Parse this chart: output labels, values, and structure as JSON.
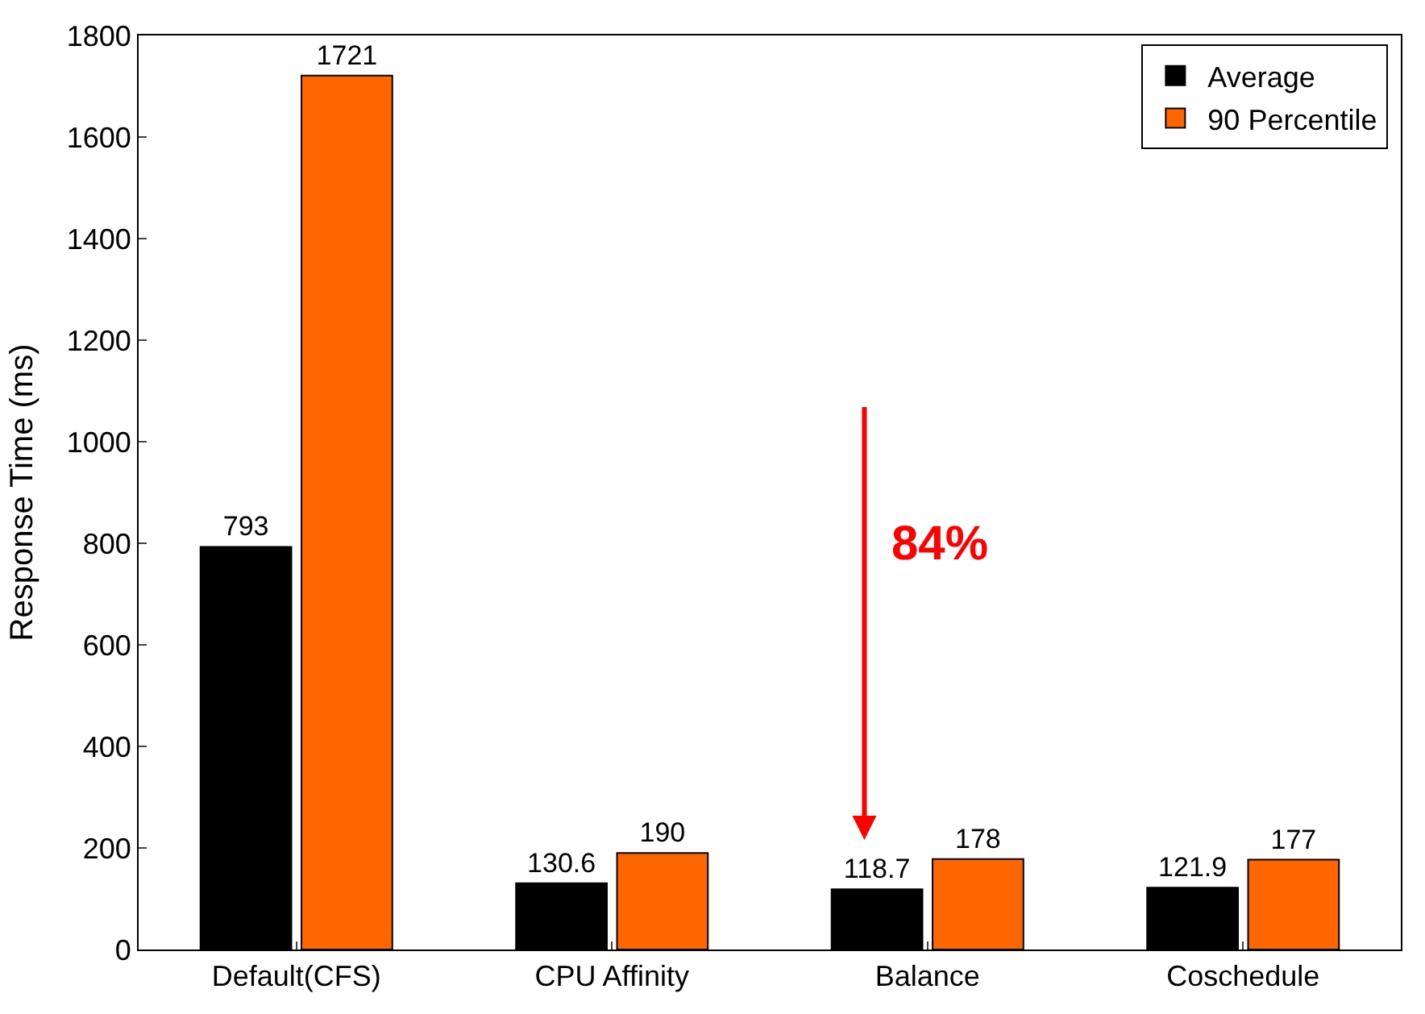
{
  "chart_data": {
    "type": "bar",
    "ylabel": "Response Time (ms)",
    "categories": [
      "Default(CFS)",
      "CPU Affinity",
      "Balance",
      "Coschedule"
    ],
    "series": [
      {
        "name": "Average",
        "color": "#000000",
        "values": [
          793,
          130.6,
          118.7,
          121.9
        ]
      },
      {
        "name": "90 Percentile",
        "color": "#ff6600",
        "values": [
          1721,
          190,
          178,
          177
        ]
      }
    ],
    "ylim": [
      0,
      1800
    ],
    "yticks": [
      0,
      200,
      400,
      600,
      800,
      1000,
      1200,
      1400,
      1600,
      1800
    ],
    "data_labels": true,
    "legend": "top right",
    "annotations": [
      "84%"
    ]
  }
}
